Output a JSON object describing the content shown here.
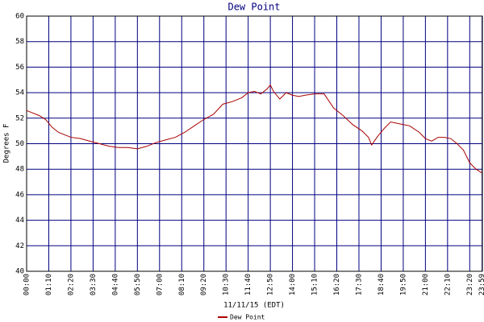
{
  "chart_data": {
    "type": "line",
    "title": "Dew Point",
    "ylabel": "Degrees F",
    "xlabel": "11/11/15 (EDT)",
    "x": [
      0,
      20,
      40,
      60,
      80,
      100,
      120,
      140,
      170,
      200,
      230,
      260,
      290,
      320,
      350,
      380,
      410,
      440,
      470,
      500,
      530,
      560,
      590,
      620,
      650,
      680,
      700,
      720,
      740,
      760,
      770,
      780,
      800,
      820,
      840,
      860,
      880,
      910,
      940,
      970,
      1000,
      1030,
      1060,
      1080,
      1090,
      1110,
      1130,
      1150,
      1170,
      1190,
      1210,
      1240,
      1260,
      1280,
      1300,
      1320,
      1340,
      1360,
      1380,
      1400,
      1420,
      1439
    ],
    "series": [
      {
        "name": "Dew Point",
        "color": "#aa0000",
        "values": [
          52.6,
          52.4,
          52.2,
          51.9,
          51.3,
          50.9,
          50.7,
          50.5,
          50.4,
          50.2,
          50.0,
          49.8,
          49.7,
          49.7,
          49.6,
          49.8,
          50.1,
          50.3,
          50.5,
          50.9,
          51.4,
          51.9,
          52.3,
          53.1,
          53.3,
          53.6,
          54.0,
          54.1,
          53.9,
          54.3,
          54.6,
          54.1,
          53.5,
          54.0,
          53.8,
          53.7,
          53.8,
          53.9,
          53.9,
          52.8,
          52.2,
          51.5,
          51.0,
          50.5,
          49.9,
          50.6,
          51.2,
          51.7,
          51.6,
          51.5,
          51.4,
          50.9,
          50.4,
          50.2,
          50.5,
          50.5,
          50.4,
          50.0,
          49.5,
          48.5,
          48.0,
          47.7
        ]
      }
    ],
    "xlim": [
      0,
      1440
    ],
    "xticks": [
      {
        "value": 0,
        "label": "00:00"
      },
      {
        "value": 70,
        "label": "01:10"
      },
      {
        "value": 140,
        "label": "02:20"
      },
      {
        "value": 210,
        "label": "03:30"
      },
      {
        "value": 280,
        "label": "04:40"
      },
      {
        "value": 350,
        "label": "05:50"
      },
      {
        "value": 420,
        "label": "07:00"
      },
      {
        "value": 490,
        "label": "08:10"
      },
      {
        "value": 560,
        "label": "09:20"
      },
      {
        "value": 630,
        "label": "10:30"
      },
      {
        "value": 700,
        "label": "11:40"
      },
      {
        "value": 770,
        "label": "12:50"
      },
      {
        "value": 840,
        "label": "14:00"
      },
      {
        "value": 910,
        "label": "15:10"
      },
      {
        "value": 980,
        "label": "16:20"
      },
      {
        "value": 1050,
        "label": "17:30"
      },
      {
        "value": 1120,
        "label": "18:40"
      },
      {
        "value": 1190,
        "label": "19:50"
      },
      {
        "value": 1260,
        "label": "21:00"
      },
      {
        "value": 1330,
        "label": "22:10"
      },
      {
        "value": 1400,
        "label": "23:20"
      },
      {
        "value": 1439,
        "label": "23:59"
      }
    ],
    "ylim": [
      40,
      60
    ],
    "yticks": [
      40,
      42,
      44,
      46,
      48,
      50,
      52,
      54,
      56,
      58,
      60
    ],
    "grid": true,
    "grid_color": "#000080",
    "legend": "bottom"
  }
}
